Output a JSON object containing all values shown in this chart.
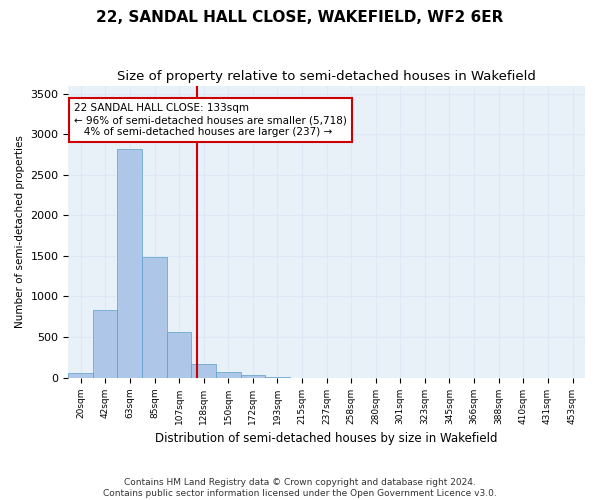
{
  "title": "22, SANDAL HALL CLOSE, WAKEFIELD, WF2 6ER",
  "subtitle": "Size of property relative to semi-detached houses in Wakefield",
  "xlabel": "Distribution of semi-detached houses by size in Wakefield",
  "ylabel": "Number of semi-detached properties",
  "property_size": 133,
  "pct_smaller": 96,
  "n_smaller": 5718,
  "pct_larger": 4,
  "n_larger": 237,
  "bin_labels": [
    "20sqm",
    "42sqm",
    "63sqm",
    "85sqm",
    "107sqm",
    "128sqm",
    "150sqm",
    "172sqm",
    "193sqm",
    "215sqm",
    "237sqm",
    "258sqm",
    "280sqm",
    "301sqm",
    "323sqm",
    "345sqm",
    "366sqm",
    "388sqm",
    "410sqm",
    "431sqm",
    "453sqm"
  ],
  "bin_edges": [
    20,
    42,
    63,
    85,
    107,
    128,
    150,
    172,
    193,
    215,
    237,
    258,
    280,
    301,
    323,
    345,
    366,
    388,
    410,
    431,
    453,
    475
  ],
  "bar_heights": [
    60,
    830,
    2820,
    1490,
    560,
    165,
    70,
    30,
    5,
    0,
    0,
    0,
    0,
    0,
    0,
    0,
    0,
    0,
    0,
    0,
    0
  ],
  "bar_color": "#aec6e8",
  "bar_edge_color": "#5a9ec9",
  "vline_x": 133,
  "vline_color": "#cc0000",
  "grid_color": "#dce8f5",
  "bg_color": "#e8f0f8",
  "annotation_box_color": "#cc0000",
  "ylim": [
    0,
    3600
  ],
  "yticks": [
    0,
    500,
    1000,
    1500,
    2000,
    2500,
    3000,
    3500
  ],
  "footer": "Contains HM Land Registry data © Crown copyright and database right 2024.\nContains public sector information licensed under the Open Government Licence v3.0.",
  "title_fontsize": 11,
  "subtitle_fontsize": 9.5
}
